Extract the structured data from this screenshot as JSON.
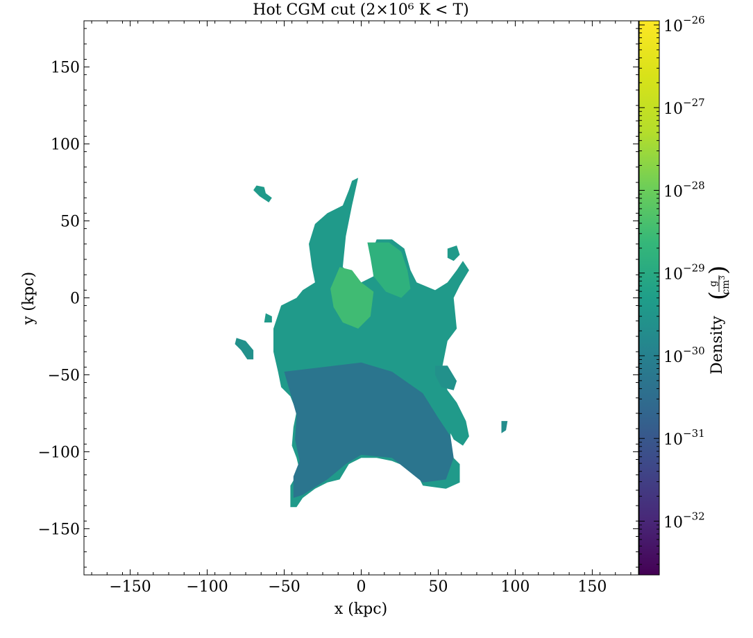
{
  "chart_data": {
    "type": "heatmap",
    "title": "Hot CGM cut (2×10⁶ K  < T)",
    "xlabel": "x  (kpc)",
    "ylabel": "y  (kpc)",
    "xlim": [
      -180,
      180
    ],
    "ylim": [
      -180,
      180
    ],
    "xticks": [
      -150,
      -100,
      -50,
      0,
      50,
      100,
      150
    ],
    "yticks": [
      -150,
      -100,
      -50,
      0,
      50,
      100,
      150
    ],
    "xtick_labels": [
      "−150",
      "−100",
      "−50",
      "0",
      "50",
      "100",
      "150"
    ],
    "ytick_labels": [
      "−150",
      "−100",
      "−50",
      "0",
      "50",
      "100",
      "150"
    ],
    "colorbar": {
      "label": "Density",
      "unit_numerator": "g",
      "unit_denominator": "cm",
      "unit_denominator_exponent": "3",
      "scale": "log",
      "colormap": "viridis",
      "log_range": [
        -32.65,
        -25.95
      ],
      "ticks": [
        {
          "exp": -26,
          "base": "10",
          "sup": "−26"
        },
        {
          "exp": -27,
          "base": "10",
          "sup": "−27"
        },
        {
          "exp": -28,
          "base": "10",
          "sup": "−28"
        },
        {
          "exp": -29,
          "base": "10",
          "sup": "−29"
        },
        {
          "exp": -30,
          "base": "10",
          "sup": "−30"
        },
        {
          "exp": -31,
          "base": "10",
          "sup": "−31"
        },
        {
          "exp": -32,
          "base": "10",
          "sup": "−32"
        }
      ]
    },
    "regions": [
      {
        "name": "central-body",
        "log_density": -29.4,
        "polygon": [
          [
            -57,
            -35
          ],
          [
            -57,
            -20
          ],
          [
            -52,
            -5
          ],
          [
            -42,
            0
          ],
          [
            -38,
            5
          ],
          [
            -30,
            10
          ],
          [
            -32,
            20
          ],
          [
            -34,
            35
          ],
          [
            -30,
            48
          ],
          [
            -22,
            55
          ],
          [
            -12,
            60
          ],
          [
            -8,
            70
          ],
          [
            -6,
            76
          ],
          [
            -2,
            78
          ],
          [
            -6,
            60
          ],
          [
            -10,
            40
          ],
          [
            -12,
            20
          ],
          [
            0,
            10
          ],
          [
            8,
            14
          ],
          [
            6,
            28
          ],
          [
            10,
            38
          ],
          [
            20,
            38
          ],
          [
            28,
            32
          ],
          [
            32,
            18
          ],
          [
            36,
            10
          ],
          [
            48,
            5
          ],
          [
            56,
            10
          ],
          [
            62,
            18
          ],
          [
            66,
            24
          ],
          [
            70,
            18
          ],
          [
            64,
            8
          ],
          [
            60,
            0
          ],
          [
            62,
            -20
          ],
          [
            56,
            -28
          ],
          [
            52,
            -48
          ],
          [
            56,
            -60
          ],
          [
            62,
            -68
          ],
          [
            68,
            -80
          ],
          [
            70,
            -90
          ],
          [
            66,
            -96
          ],
          [
            60,
            -92
          ],
          [
            58,
            -88
          ],
          [
            58,
            -102
          ],
          [
            64,
            -108
          ],
          [
            64,
            -120
          ],
          [
            55,
            -124
          ],
          [
            40,
            -122
          ],
          [
            35,
            -112
          ],
          [
            20,
            -106
          ],
          [
            10,
            -104
          ],
          [
            0,
            -104
          ],
          [
            -8,
            -108
          ],
          [
            -14,
            -118
          ],
          [
            -22,
            -120
          ],
          [
            -30,
            -124
          ],
          [
            -38,
            -130
          ],
          [
            -42,
            -136
          ],
          [
            -46,
            -136
          ],
          [
            -46,
            -122
          ],
          [
            -40,
            -112
          ],
          [
            -42,
            -104
          ],
          [
            -45,
            -96
          ],
          [
            -44,
            -84
          ],
          [
            -42,
            -74
          ],
          [
            -46,
            -64
          ],
          [
            -52,
            -58
          ],
          [
            -54,
            -48
          ]
        ]
      },
      {
        "name": "lower-lobe",
        "log_density": -30.3,
        "polygon": [
          [
            -50,
            -48
          ],
          [
            -25,
            -45
          ],
          [
            0,
            -42
          ],
          [
            20,
            -48
          ],
          [
            40,
            -62
          ],
          [
            50,
            -78
          ],
          [
            58,
            -90
          ],
          [
            60,
            -104
          ],
          [
            55,
            -118
          ],
          [
            40,
            -120
          ],
          [
            20,
            -104
          ],
          [
            0,
            -102
          ],
          [
            -10,
            -108
          ],
          [
            -22,
            -118
          ],
          [
            -38,
            -128
          ],
          [
            -44,
            -130
          ],
          [
            -44,
            -116
          ],
          [
            -40,
            -106
          ],
          [
            -43,
            -92
          ],
          [
            -42,
            -76
          ],
          [
            -46,
            -62
          ]
        ]
      },
      {
        "name": "core",
        "log_density": -28.5,
        "polygon": [
          [
            -14,
            20
          ],
          [
            -6,
            18
          ],
          [
            0,
            10
          ],
          [
            8,
            4
          ],
          [
            6,
            -12
          ],
          [
            -2,
            -20
          ],
          [
            -12,
            -16
          ],
          [
            -18,
            -6
          ],
          [
            -20,
            6
          ]
        ]
      },
      {
        "name": "inner-arc",
        "log_density": -28.8,
        "polygon": [
          [
            4,
            36
          ],
          [
            18,
            36
          ],
          [
            26,
            30
          ],
          [
            30,
            18
          ],
          [
            32,
            6
          ],
          [
            26,
            0
          ],
          [
            16,
            4
          ],
          [
            8,
            14
          ],
          [
            6,
            26
          ]
        ]
      },
      {
        "name": "blob-top-left",
        "log_density": -29.4,
        "polygon": [
          [
            -68,
            73
          ],
          [
            -63,
            72
          ],
          [
            -62,
            68
          ],
          [
            -58,
            65
          ],
          [
            -60,
            62
          ],
          [
            -66,
            66
          ],
          [
            -70,
            70
          ]
        ]
      },
      {
        "name": "blob-left",
        "log_density": -29.6,
        "polygon": [
          [
            -81,
            -26
          ],
          [
            -75,
            -28
          ],
          [
            -70,
            -34
          ],
          [
            -70,
            -40
          ],
          [
            -74,
            -40
          ],
          [
            -78,
            -34
          ],
          [
            -82,
            -30
          ]
        ]
      },
      {
        "name": "blob-far-right",
        "log_density": -29.7,
        "polygon": [
          [
            91,
            -80
          ],
          [
            95,
            -80
          ],
          [
            94,
            -86
          ],
          [
            91,
            -88
          ]
        ]
      },
      {
        "name": "blob-right-wisp",
        "log_density": -29.4,
        "polygon": [
          [
            56,
            32
          ],
          [
            62,
            34
          ],
          [
            64,
            28
          ],
          [
            60,
            24
          ],
          [
            56,
            26
          ]
        ]
      },
      {
        "name": "blob-right-lower",
        "log_density": -29.6,
        "polygon": [
          [
            48,
            -44
          ],
          [
            56,
            -44
          ],
          [
            62,
            -54
          ],
          [
            60,
            -60
          ],
          [
            52,
            -58
          ],
          [
            48,
            -50
          ]
        ]
      },
      {
        "name": "blob-mid-left",
        "log_density": -29.4,
        "polygon": [
          [
            -62,
            -10
          ],
          [
            -58,
            -12
          ],
          [
            -58,
            -16
          ],
          [
            -63,
            -16
          ]
        ]
      }
    ]
  }
}
